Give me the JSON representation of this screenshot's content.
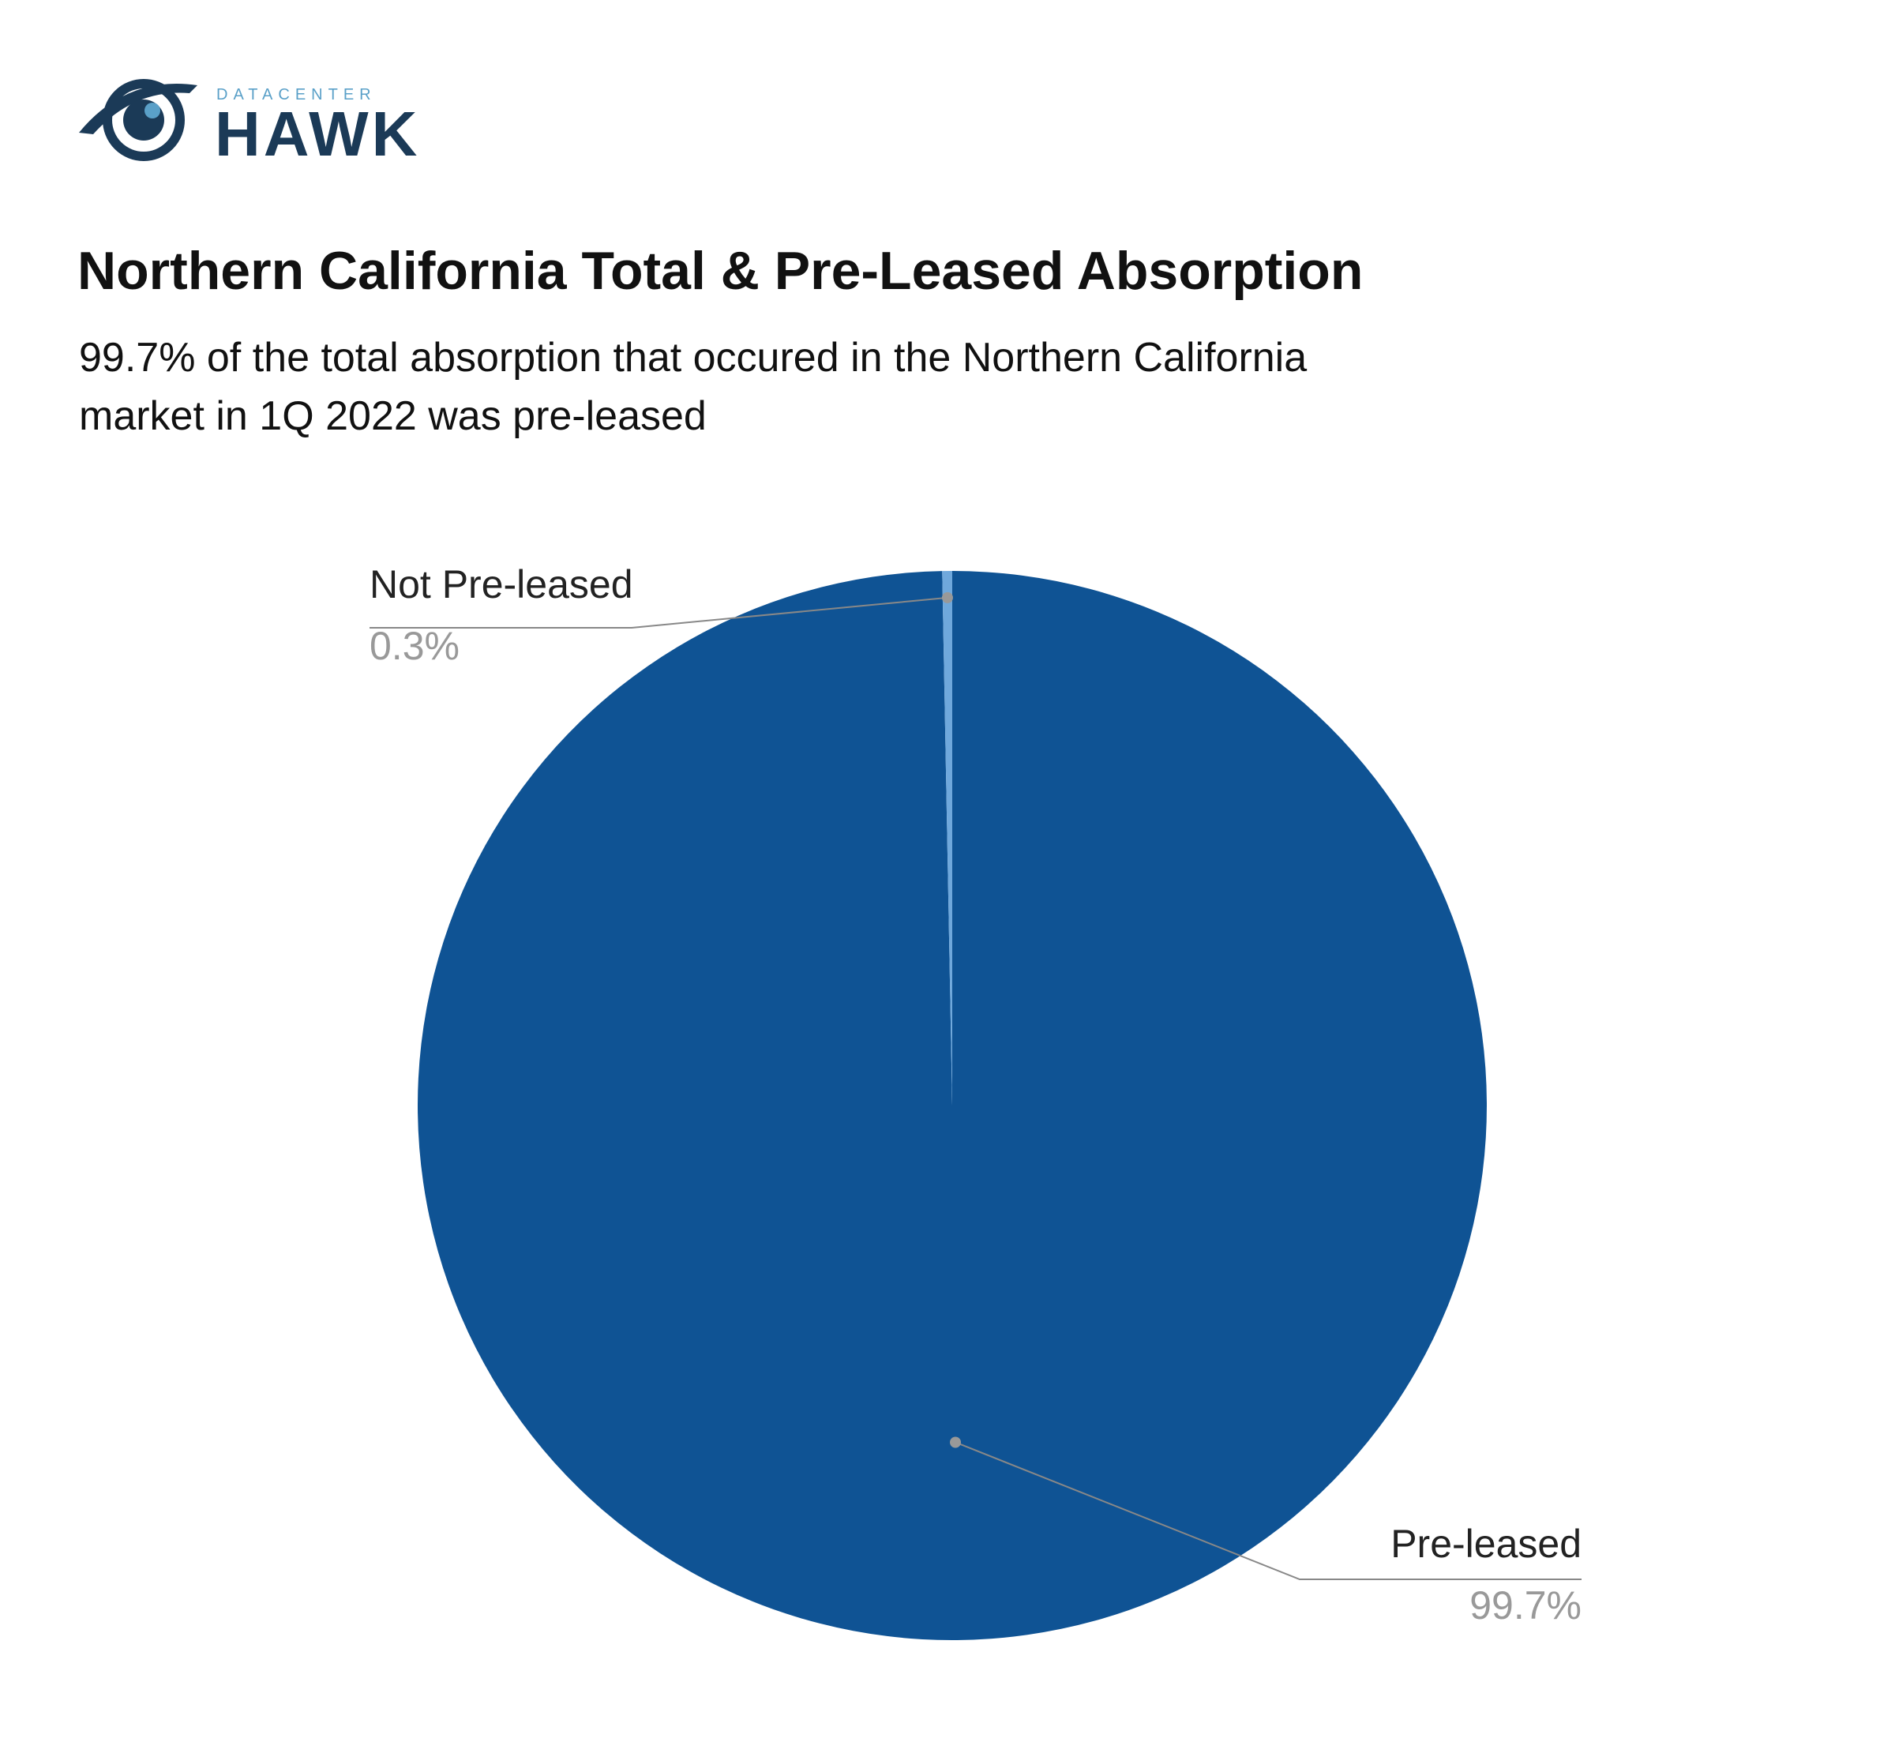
{
  "logo": {
    "small": "DATACENTER",
    "large": "HAWK"
  },
  "chart_data": {
    "type": "pie",
    "title": "Northern California Total & Pre-Leased Absorption",
    "subtitle": [
      "99.7% of the total absorption that occured in the Northern California",
      "market in 1Q 2022 was pre-leased"
    ],
    "categories": [
      "Pre-leased",
      "Not Pre-leased"
    ],
    "values": [
      99.7,
      0.3
    ],
    "value_labels": [
      "99.7%",
      "0.3%"
    ],
    "colors": [
      "#0f5394",
      "#6fa8dc"
    ]
  }
}
